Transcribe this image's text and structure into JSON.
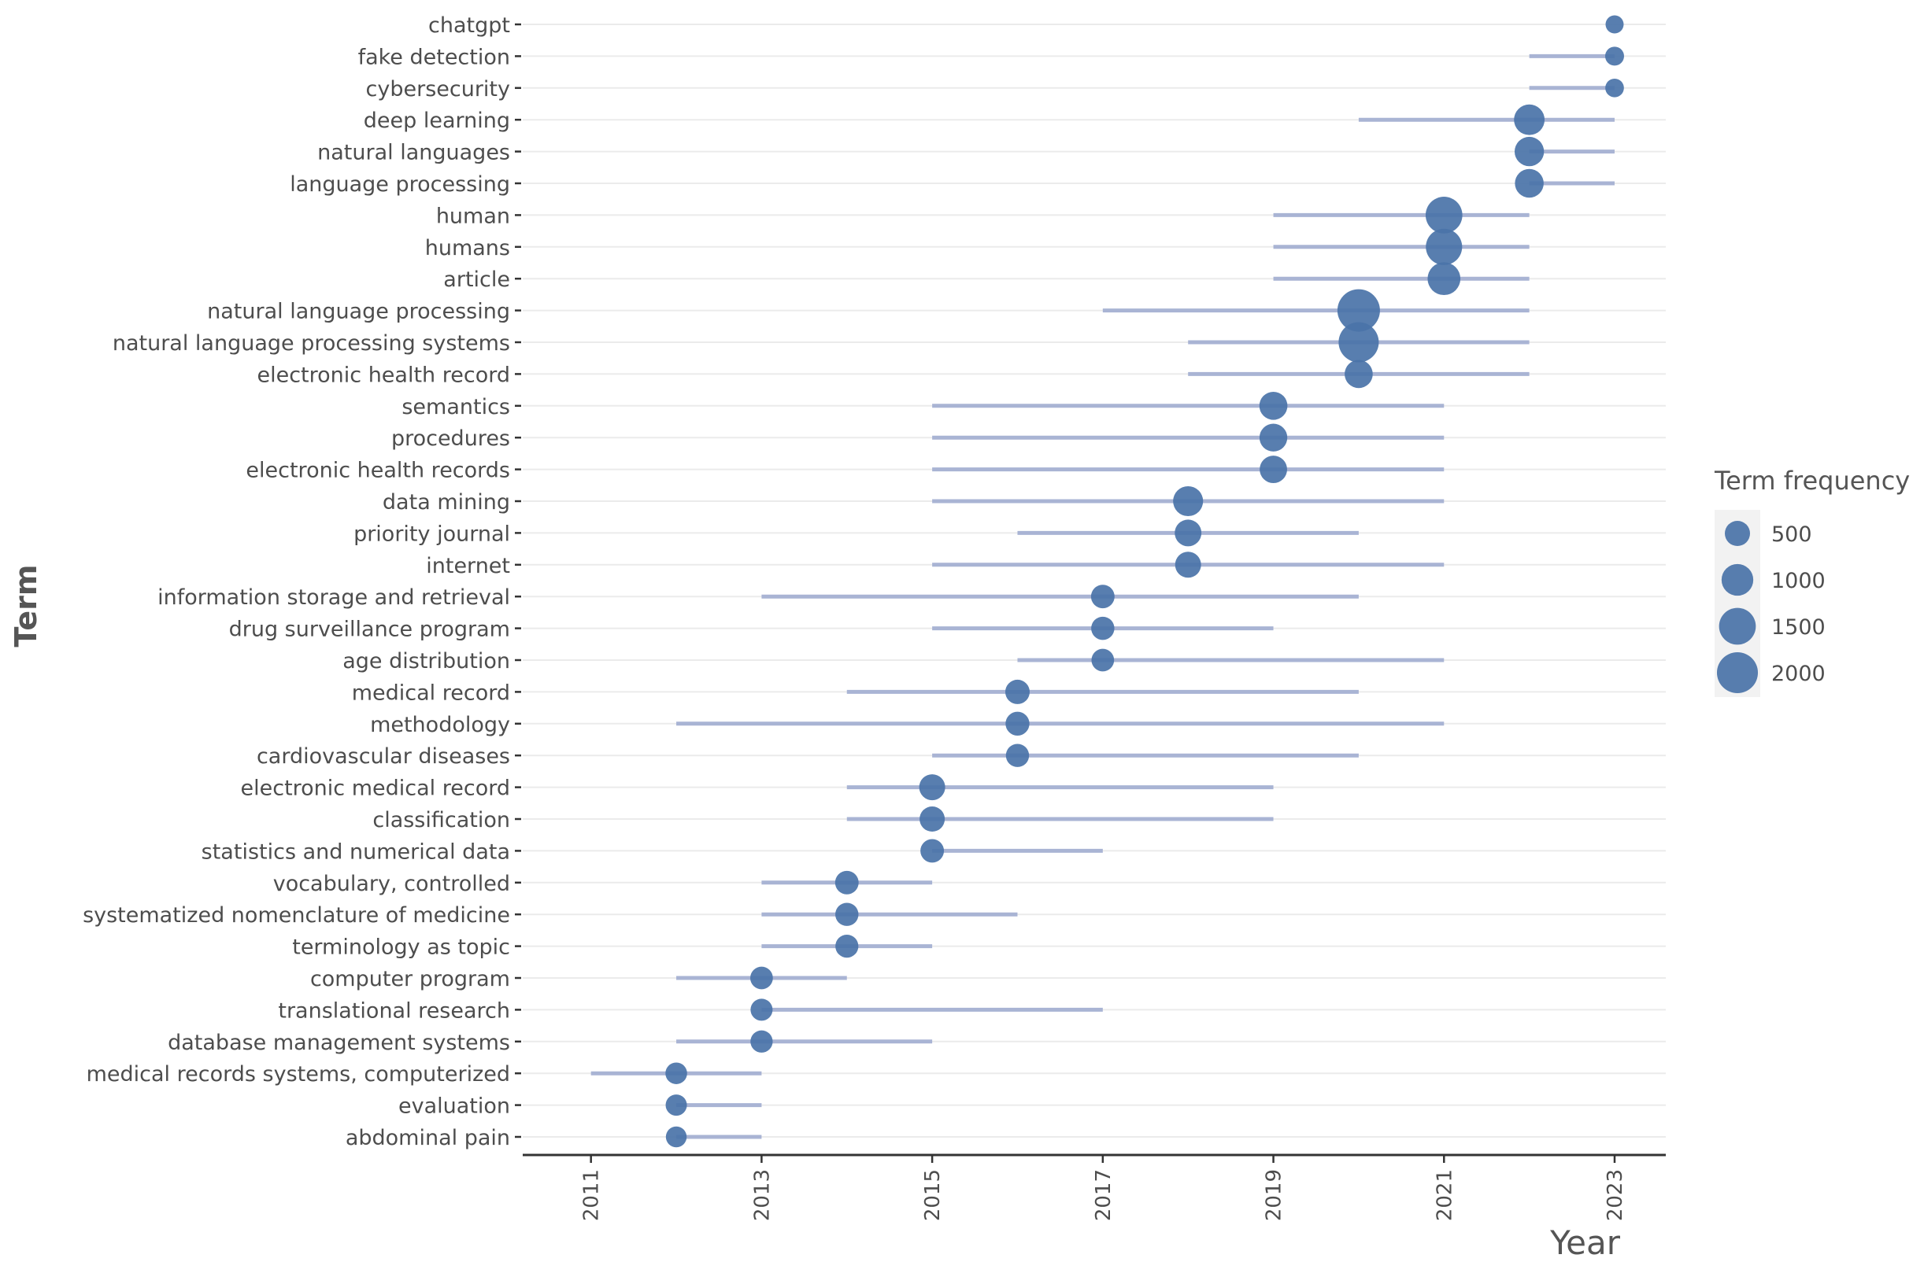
{
  "chart_data": {
    "type": "scatter",
    "title": "",
    "xlabel": "Year",
    "ylabel": "Term",
    "xlim": [
      2010.2,
      2023.6
    ],
    "x_ticks": [
      2011,
      2013,
      2015,
      2017,
      2019,
      2021,
      2023
    ],
    "x_tick_labels": [
      "2011",
      "2013",
      "2015",
      "2017",
      "2019",
      "2021",
      "2023"
    ],
    "grid": true,
    "legend": {
      "title": "Term frequency",
      "position": "right",
      "entries": [
        {
          "label": "500",
          "value": 500
        },
        {
          "label": "1000",
          "value": 1000
        },
        {
          "label": "1500",
          "value": 1500
        },
        {
          "label": "2000",
          "value": 2000
        }
      ]
    },
    "colors": {
      "point": "#4a73a8",
      "range": "#a9b4d4",
      "axis": "#333333",
      "grid": "#ebebeb",
      "tick_text": "#4d4d4d",
      "title_text": "#555555",
      "legend_bg": "#f2f2f2"
    },
    "series": [
      {
        "term": "chatgpt",
        "start": 2023,
        "end": 2023,
        "median": 2023,
        "freq": 150
      },
      {
        "term": "fake detection",
        "start": 2022,
        "end": 2023,
        "median": 2023,
        "freq": 180
      },
      {
        "term": "cybersecurity",
        "start": 2022,
        "end": 2023,
        "median": 2023,
        "freq": 170
      },
      {
        "term": "deep learning",
        "start": 2020,
        "end": 2023,
        "median": 2022,
        "freq": 900
      },
      {
        "term": "natural languages",
        "start": 2022,
        "end": 2023,
        "median": 2022,
        "freq": 800
      },
      {
        "term": "language processing",
        "start": 2022,
        "end": 2023,
        "median": 2022,
        "freq": 750
      },
      {
        "term": "human",
        "start": 2019,
        "end": 2022,
        "median": 2021,
        "freq": 1500
      },
      {
        "term": "humans",
        "start": 2019,
        "end": 2022,
        "median": 2021,
        "freq": 1450
      },
      {
        "term": "article",
        "start": 2019,
        "end": 2022,
        "median": 2021,
        "freq": 1100
      },
      {
        "term": "natural language processing",
        "start": 2017,
        "end": 2022,
        "median": 2020,
        "freq": 2200
      },
      {
        "term": "natural language processing systems",
        "start": 2018,
        "end": 2022,
        "median": 2020,
        "freq": 1900
      },
      {
        "term": "electronic health record",
        "start": 2018,
        "end": 2022,
        "median": 2020,
        "freq": 700
      },
      {
        "term": "semantics",
        "start": 2015,
        "end": 2021,
        "median": 2019,
        "freq": 700
      },
      {
        "term": "procedures",
        "start": 2015,
        "end": 2021,
        "median": 2019,
        "freq": 680
      },
      {
        "term": "electronic health records",
        "start": 2015,
        "end": 2021,
        "median": 2019,
        "freq": 650
      },
      {
        "term": "data mining",
        "start": 2015,
        "end": 2021,
        "median": 2018,
        "freq": 850
      },
      {
        "term": "priority journal",
        "start": 2016,
        "end": 2020,
        "median": 2018,
        "freq": 600
      },
      {
        "term": "internet",
        "start": 2015,
        "end": 2021,
        "median": 2018,
        "freq": 550
      },
      {
        "term": "information storage and retrieval",
        "start": 2013,
        "end": 2020,
        "median": 2017,
        "freq": 400
      },
      {
        "term": "drug surveillance program",
        "start": 2015,
        "end": 2019,
        "median": 2017,
        "freq": 380
      },
      {
        "term": "age distribution",
        "start": 2016,
        "end": 2021,
        "median": 2017,
        "freq": 350
      },
      {
        "term": "medical record",
        "start": 2014,
        "end": 2020,
        "median": 2016,
        "freq": 450
      },
      {
        "term": "methodology",
        "start": 2012,
        "end": 2021,
        "median": 2016,
        "freq": 420
      },
      {
        "term": "cardiovascular diseases",
        "start": 2015,
        "end": 2020,
        "median": 2016,
        "freq": 380
      },
      {
        "term": "electronic medical record",
        "start": 2014,
        "end": 2019,
        "median": 2015,
        "freq": 550
      },
      {
        "term": "classification",
        "start": 2014,
        "end": 2019,
        "median": 2015,
        "freq": 500
      },
      {
        "term": "statistics and numerical data",
        "start": 2015,
        "end": 2017,
        "median": 2015,
        "freq": 400
      },
      {
        "term": "vocabulary, controlled",
        "start": 2013,
        "end": 2015,
        "median": 2014,
        "freq": 400
      },
      {
        "term": "systematized nomenclature of medicine",
        "start": 2013,
        "end": 2016,
        "median": 2014,
        "freq": 380
      },
      {
        "term": "terminology as topic",
        "start": 2013,
        "end": 2015,
        "median": 2014,
        "freq": 370
      },
      {
        "term": "computer program",
        "start": 2012,
        "end": 2014,
        "median": 2013,
        "freq": 350
      },
      {
        "term": "translational research",
        "start": 2013,
        "end": 2017,
        "median": 2013,
        "freq": 320
      },
      {
        "term": "database management systems",
        "start": 2012,
        "end": 2015,
        "median": 2013,
        "freq": 330
      },
      {
        "term": "medical records systems, computerized",
        "start": 2011,
        "end": 2013,
        "median": 2012,
        "freq": 300
      },
      {
        "term": "evaluation",
        "start": 2012,
        "end": 2013,
        "median": 2012,
        "freq": 280
      },
      {
        "term": "abdominal pain",
        "start": 2012,
        "end": 2013,
        "median": 2012,
        "freq": 260
      }
    ]
  }
}
